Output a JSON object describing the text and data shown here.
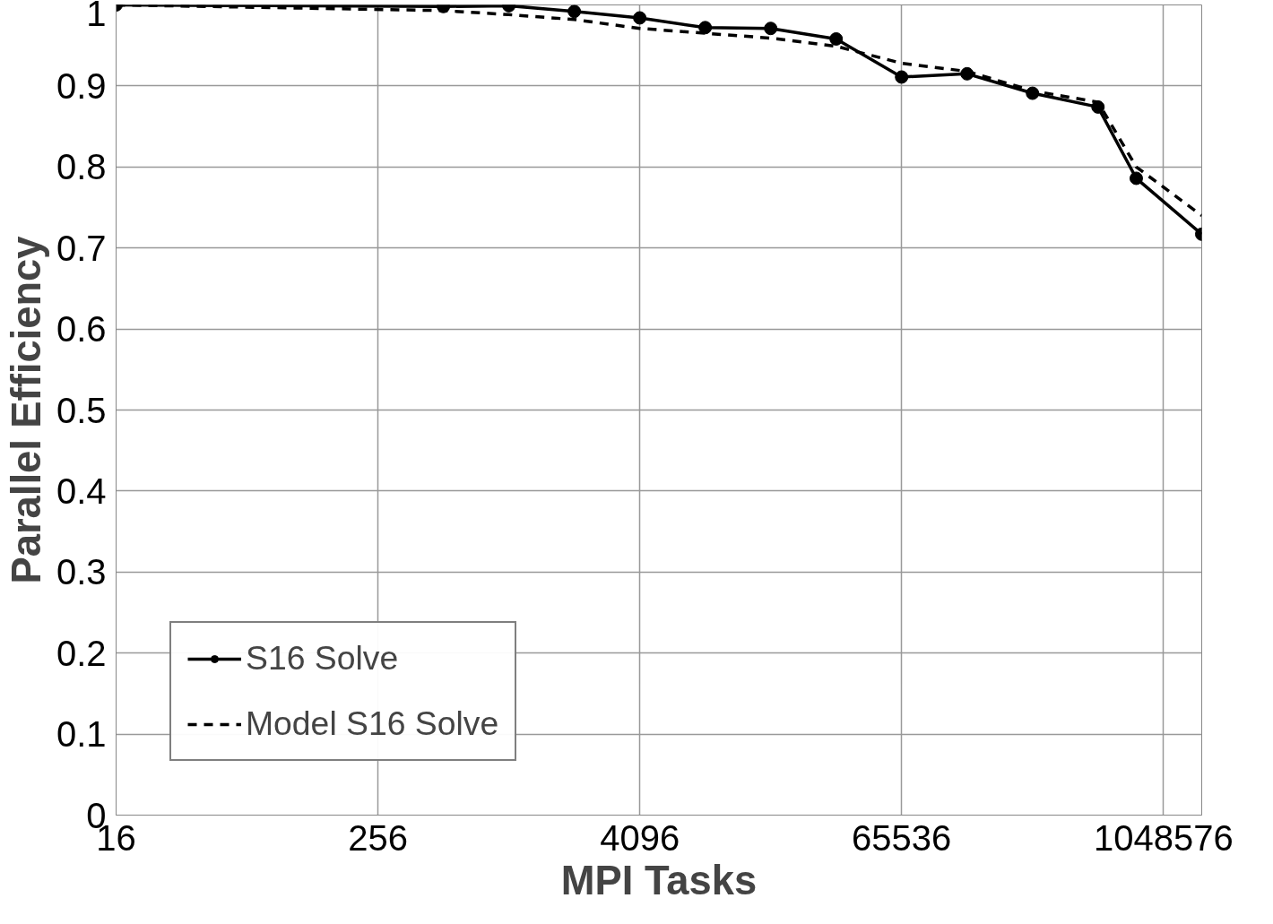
{
  "chart_data": {
    "type": "line",
    "xlabel": "MPI Tasks",
    "ylabel": "Parallel Efficiency",
    "log": "x",
    "xlim": [
      16,
      1572864
    ],
    "xticks": [
      16,
      256,
      4096,
      65536,
      1048576
    ],
    "ylim": [
      0,
      1
    ],
    "yticks": [
      0,
      0.1,
      0.2,
      0.3,
      0.4,
      0.5,
      0.6,
      0.7,
      0.8,
      0.9,
      1
    ],
    "grid": true,
    "legend": "bottom left",
    "x": [
      16,
      512,
      1024,
      2048,
      4096,
      8192,
      16384,
      32768,
      65536,
      131072,
      262144,
      524288,
      786432,
      1572864
    ],
    "series": [
      {
        "name": "S16 Solve",
        "color": "#000000",
        "marker": "circle",
        "line_style": "solid",
        "values": [
          1.0,
          0.998,
          0.999,
          0.992,
          0.984,
          0.972,
          0.971,
          0.958,
          0.911,
          0.915,
          0.891,
          0.874,
          0.786,
          0.717
        ]
      },
      {
        "name": "Model S16 Solve",
        "color": "#000000",
        "marker": "none",
        "line_style": "dashed",
        "values": [
          1.0,
          0.993,
          0.988,
          0.982,
          0.971,
          0.965,
          0.959,
          0.949,
          0.928,
          0.918,
          0.894,
          0.88,
          0.8,
          0.74
        ]
      }
    ]
  }
}
